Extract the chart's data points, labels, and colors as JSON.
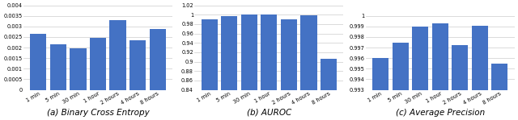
{
  "categories": [
    "1 min",
    "5 min",
    "30 min",
    "1 hour",
    "2 hours",
    "4 hours",
    "8 hours"
  ],
  "bce_values": [
    0.00265,
    0.00215,
    0.00195,
    0.00248,
    0.0033,
    0.00233,
    0.0029
  ],
  "auroc_values": [
    0.99,
    0.997,
    1.0,
    1.0,
    0.99,
    0.999,
    0.906
  ],
  "ap_values": [
    0.996,
    0.9975,
    0.999,
    0.9993,
    0.9972,
    0.9991,
    0.9955
  ],
  "bar_color": "#4472C4",
  "bce_ylim": [
    0,
    0.004
  ],
  "bce_yticks": [
    0,
    0.0005,
    0.001,
    0.0015,
    0.002,
    0.0025,
    0.003,
    0.0035,
    0.004
  ],
  "auroc_ylim": [
    0.84,
    1.02
  ],
  "auroc_yticks": [
    0.84,
    0.86,
    0.88,
    0.9,
    0.92,
    0.94,
    0.96,
    0.98,
    1.0,
    1.02
  ],
  "ap_ylim": [
    0.993,
    1.001
  ],
  "ap_yticks": [
    0.993,
    0.994,
    0.995,
    0.996,
    0.997,
    0.998,
    0.999,
    1.0
  ],
  "subtitle_a": "(a) Binary Cross Entropy",
  "subtitle_b": "(b) AUROC",
  "subtitle_c": "(c) Average Precision",
  "subtitle_fontsize": 7.5,
  "tick_fontsize": 4.8,
  "grid_color": "#cccccc",
  "bar_width": 0.82
}
